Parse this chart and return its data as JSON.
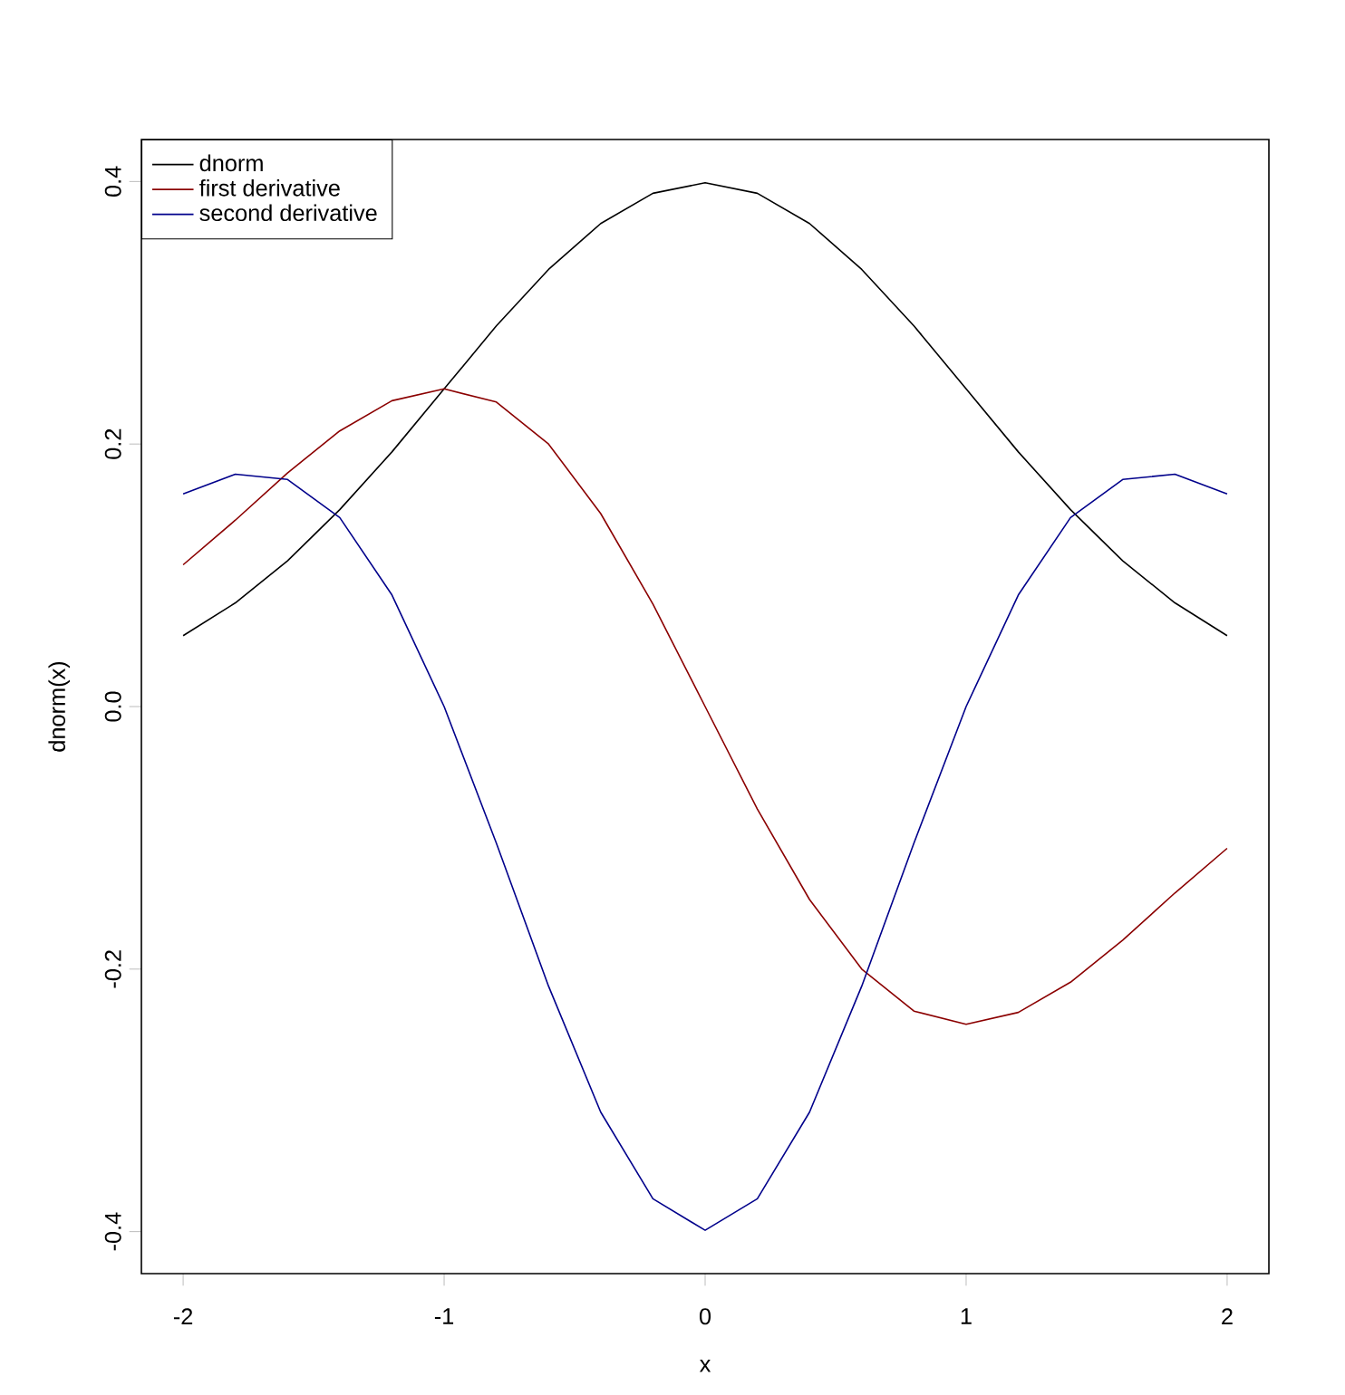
{
  "chart_data": {
    "type": "line",
    "xlabel": "x",
    "ylabel": "dnorm(x)",
    "x": [
      -2.0,
      -1.8,
      -1.6,
      -1.4,
      -1.2,
      -1.0,
      -0.8,
      -0.6,
      -0.4,
      -0.2,
      0.0,
      0.2,
      0.4,
      0.6,
      0.8,
      1.0,
      1.2,
      1.4,
      1.6,
      1.8,
      2.0
    ],
    "series": [
      {
        "name": "dnorm",
        "color": "#000000",
        "values": [
          0.054,
          0.079,
          0.111,
          0.15,
          0.194,
          0.242,
          0.29,
          0.333,
          0.368,
          0.391,
          0.399,
          0.391,
          0.368,
          0.333,
          0.29,
          0.242,
          0.194,
          0.15,
          0.111,
          0.079,
          0.054
        ]
      },
      {
        "name": "first derivative",
        "color": "#8b0000",
        "values": [
          0.108,
          0.142,
          0.178,
          0.21,
          0.233,
          0.242,
          0.232,
          0.2,
          0.147,
          0.078,
          0.0,
          -0.078,
          -0.147,
          -0.2,
          -0.232,
          -0.242,
          -0.233,
          -0.21,
          -0.178,
          -0.142,
          -0.108
        ]
      },
      {
        "name": "second derivative",
        "color": "#00008b",
        "values": [
          0.162,
          0.177,
          0.173,
          0.144,
          0.085,
          0.0,
          -0.104,
          -0.213,
          -0.309,
          -0.375,
          -0.399,
          -0.375,
          -0.309,
          -0.213,
          -0.104,
          0.0,
          0.085,
          0.144,
          0.173,
          0.177,
          0.162
        ]
      }
    ],
    "xlim": [
      -2.16,
      2.16
    ],
    "ylim": [
      -0.432,
      0.432
    ],
    "xticks": [
      -2,
      -1,
      0,
      1,
      2
    ],
    "yticks": [
      -0.4,
      -0.2,
      {
        "value": 0,
        "label": "0.0"
      },
      0.2,
      0.4
    ],
    "legend": "top left"
  }
}
